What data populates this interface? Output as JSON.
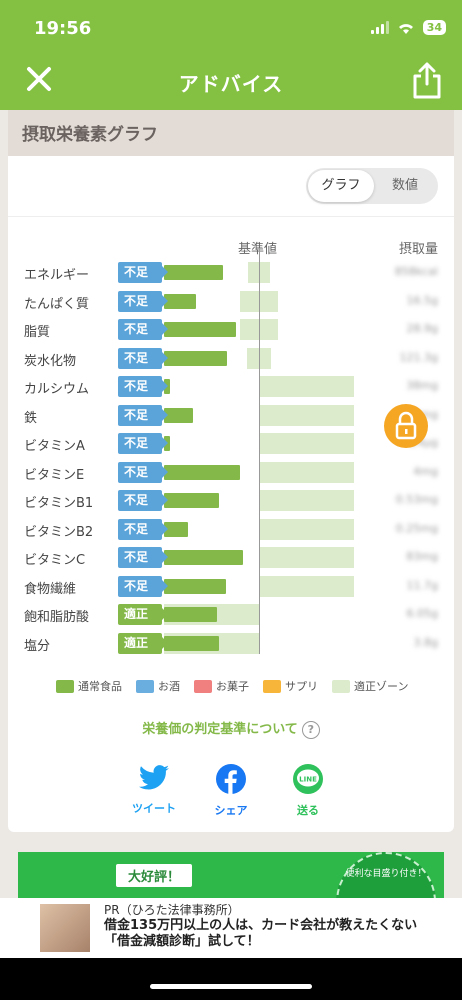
{
  "status": {
    "time": "19:56",
    "battery": "34"
  },
  "nav": {
    "title": "アドバイス"
  },
  "section": {
    "title": "摂取栄養素グラフ"
  },
  "toggle": {
    "graph": "グラフ",
    "numeric": "数値"
  },
  "columns": {
    "baseline": "基準値",
    "intake": "摂取量"
  },
  "nutrients": [
    {
      "name": "エネルギー",
      "status": "不足",
      "kind": "short",
      "intake_ratio": 0.62,
      "zone_from": 0.88,
      "zone_to": 1.12,
      "value": "858kcal"
    },
    {
      "name": "たんぱく質",
      "status": "不足",
      "kind": "short",
      "intake_ratio": 0.34,
      "zone_from": 0.8,
      "zone_to": 1.2,
      "value": "16.5g"
    },
    {
      "name": "脂質",
      "status": "不足",
      "kind": "short",
      "intake_ratio": 0.76,
      "zone_from": 0.8,
      "zone_to": 1.2,
      "value": "28.9g"
    },
    {
      "name": "炭水化物",
      "status": "不足",
      "kind": "short",
      "intake_ratio": 0.66,
      "zone_from": 0.87,
      "zone_to": 1.13,
      "value": "121.3g"
    },
    {
      "name": "カルシウム",
      "status": "不足",
      "kind": "short",
      "intake_ratio": 0.06,
      "zone_from": 1.0,
      "zone_to": 2.0,
      "value": "38mg"
    },
    {
      "name": "鉄",
      "status": "不足",
      "kind": "short",
      "intake_ratio": 0.3,
      "zone_from": 1.0,
      "zone_to": 2.0,
      "value": "1.2mg"
    },
    {
      "name": "ビタミンA",
      "status": "不足",
      "kind": "short",
      "intake_ratio": 0.06,
      "zone_from": 1.0,
      "zone_to": 2.0,
      "value": "24µg"
    },
    {
      "name": "ビタミンE",
      "status": "不足",
      "kind": "short",
      "intake_ratio": 0.8,
      "zone_from": 1.0,
      "zone_to": 2.0,
      "value": "4mg"
    },
    {
      "name": "ビタミンB1",
      "status": "不足",
      "kind": "short",
      "intake_ratio": 0.58,
      "zone_from": 1.0,
      "zone_to": 2.0,
      "value": "0.53mg"
    },
    {
      "name": "ビタミンB2",
      "status": "不足",
      "kind": "short",
      "intake_ratio": 0.25,
      "zone_from": 1.0,
      "zone_to": 2.0,
      "value": "0.25mg"
    },
    {
      "name": "ビタミンC",
      "status": "不足",
      "kind": "short",
      "intake_ratio": 0.83,
      "zone_from": 1.0,
      "zone_to": 2.0,
      "value": "83mg"
    },
    {
      "name": "食物繊維",
      "status": "不足",
      "kind": "short",
      "intake_ratio": 0.65,
      "zone_from": 1.0,
      "zone_to": 2.0,
      "value": "11.7g"
    },
    {
      "name": "飽和脂肪酸",
      "status": "適正",
      "kind": "ok",
      "intake_ratio": 0.56,
      "zone_from": 0.0,
      "zone_to": 1.0,
      "value": "6.05g"
    },
    {
      "name": "塩分",
      "status": "適正",
      "kind": "ok",
      "intake_ratio": 0.58,
      "zone_from": 0.0,
      "zone_to": 1.0,
      "value": "3.8g"
    }
  ],
  "legend": [
    {
      "label": "通常食品",
      "color": "#84b94a"
    },
    {
      "label": "お酒",
      "color": "#6aaee0"
    },
    {
      "label": "お菓子",
      "color": "#f07f7f"
    },
    {
      "label": "サプリ",
      "color": "#f7b63a"
    },
    {
      "label": "適正ゾーン",
      "color": "#dcebcc"
    }
  ],
  "criteria_link": "栄養価の判定基準について",
  "share": {
    "twitter": "ツイート",
    "facebook": "シェア",
    "line": "送る",
    "line_icon_text": "LINE"
  },
  "banner": {
    "tag": "大好評！",
    "circle_text": "便利な目盛り付き！"
  },
  "ad": {
    "pr": "PR（ひろた法律事務所）",
    "text": "借金135万円以上の人は、カード会社が教えたくない「借金減額診断」試して！"
  },
  "colors": {
    "brand": "#84c142",
    "short": "#5ba4d9",
    "ok": "#84b94a",
    "zone": "#dcebcc",
    "lock": "#f5a623"
  }
}
